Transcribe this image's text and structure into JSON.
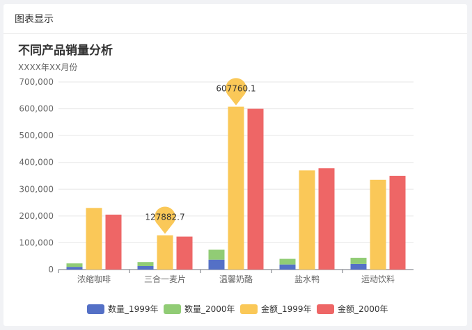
{
  "panel": {
    "header_title": "图表显示"
  },
  "chart_data": {
    "type": "bar",
    "title": "不同产品销量分析",
    "subtitle": "XXXX年XX月份",
    "categories": [
      "浓缩咖啡",
      "三合一麦片",
      "温馨奶酪",
      "盐水鸭",
      "运动饮料"
    ],
    "series": [
      {
        "name": "数量_1999年",
        "color": "#5470c6",
        "values": [
          10000,
          13000,
          37000,
          19000,
          21000
        ],
        "stack": "qty"
      },
      {
        "name": "数量_2000年",
        "color": "#91cc75",
        "values": [
          13000,
          15000,
          37000,
          21000,
          23000
        ],
        "stack": "qty"
      },
      {
        "name": "金额_1999年",
        "color": "#fac858",
        "values": [
          230000,
          127882.7,
          607760.1,
          370000,
          335000
        ]
      },
      {
        "name": "金额_2000年",
        "color": "#ee6666",
        "values": [
          205000,
          123000,
          600000,
          378000,
          350000
        ]
      }
    ],
    "ylim": [
      0,
      700000
    ],
    "yticks": [
      "0",
      "100,000",
      "200,000",
      "300,000",
      "400,000",
      "500,000",
      "600,000",
      "700,000"
    ],
    "ytick_values": [
      0,
      100000,
      200000,
      300000,
      400000,
      500000,
      600000,
      700000
    ],
    "markers": [
      {
        "series": "金额_1999年",
        "category": "三合一麦片",
        "label": "127882.7"
      },
      {
        "series": "金额_1999年",
        "category": "温馨奶酪",
        "label": "607760.1"
      }
    ],
    "legend_position": "bottom-center",
    "grid": true
  }
}
